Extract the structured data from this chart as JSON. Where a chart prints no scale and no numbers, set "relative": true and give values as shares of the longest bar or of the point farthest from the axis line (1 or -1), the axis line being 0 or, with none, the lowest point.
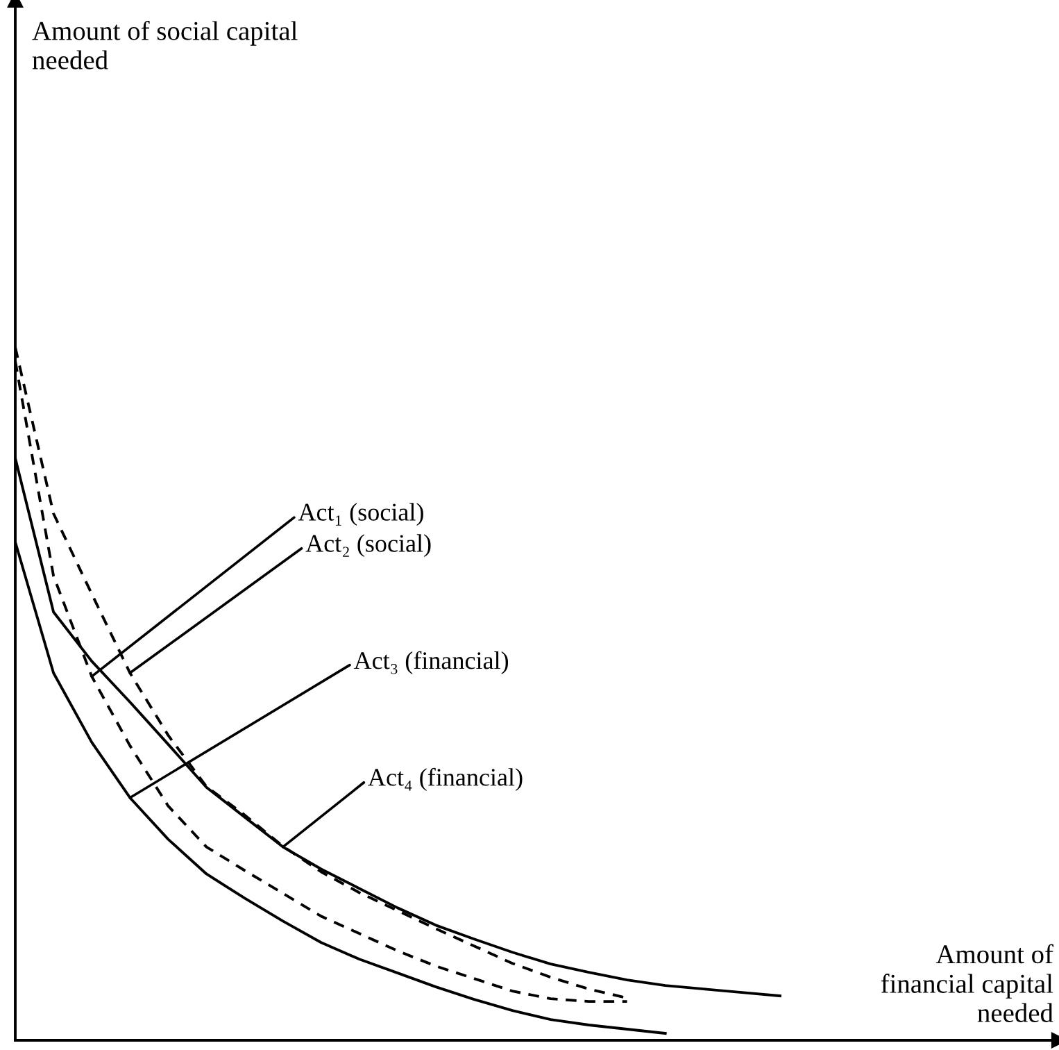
{
  "chart_data": {
    "type": "line",
    "relative": true,
    "xlabel": "Amount of\nfinancial capital\nneeded",
    "marker": "none",
    "categories": [
      null,
      null,
      null,
      null,
      null,
      null,
      null,
      null,
      null,
      null,
      null,
      null,
      null,
      null,
      null,
      null,
      null,
      null,
      null,
      null,
      null
    ],
    "series": [
      {
        "color": "#000000",
        "line_style": "dashed",
        "values": [
          0.98,
          0.67,
          0.525,
          0.425,
          0.338,
          0.279,
          0.245,
          0.212,
          0.179,
          0.154,
          0.129,
          0.107,
          0.089,
          0.071,
          0.06,
          0.056,
          0.056,
          null,
          null,
          null,
          null
        ]
      },
      {
        "color": "#000000",
        "line_style": "dashed",
        "values": [
          1.0,
          0.76,
          0.644,
          0.53,
          0.44,
          0.366,
          0.325,
          0.28,
          0.243,
          0.213,
          0.187,
          0.161,
          0.136,
          0.111,
          0.091,
          0.074,
          0.061,
          null,
          null,
          null,
          null
        ]
      },
      {
        "color": "#000000",
        "line_style": "solid",
        "values": [
          0.719,
          0.53,
          0.43,
          0.35,
          0.29,
          0.24,
          0.205,
          0.172,
          0.141,
          0.117,
          0.097,
          0.077,
          0.059,
          0.043,
          0.03,
          0.022,
          0.016,
          0.01,
          null,
          null,
          null
        ]
      },
      {
        "color": "#000000",
        "line_style": "solid",
        "values": [
          0.84,
          0.618,
          0.547,
          0.488,
          0.427,
          0.365,
          0.322,
          0.279,
          0.247,
          0.219,
          0.191,
          0.166,
          0.146,
          0.127,
          0.11,
          0.098,
          0.087,
          0.079,
          0.074,
          0.069,
          0.064
        ]
      }
    ],
    "annotations": [
      "Act₁ (social)",
      "Act₂ (social)",
      "Act₃ (financial)",
      "Act₄ (financial)",
      "Amount of social capital\nneeded"
    ]
  }
}
